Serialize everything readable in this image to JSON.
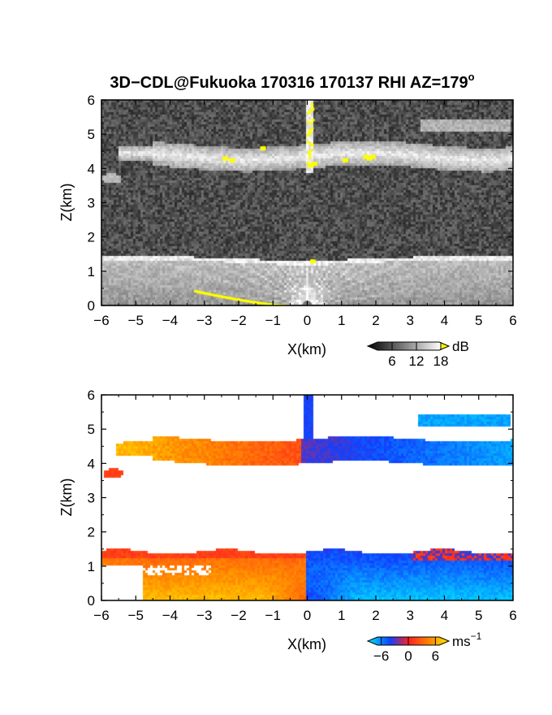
{
  "title": "3D−CDL@Fukuoka 170316 170137 RHI AZ=179",
  "title_superscript": "o",
  "chart_data": [
    {
      "type": "heatmap",
      "quantity": "backscatter intensity",
      "xlabel": "X(km)",
      "ylabel": "Z(km)",
      "xlim": [
        -6,
        6
      ],
      "ylim": [
        0,
        6
      ],
      "xticks": [
        "−6",
        "−5",
        "−4",
        "−3",
        "−2",
        "−1",
        "0",
        "1",
        "2",
        "3",
        "4",
        "5",
        "6"
      ],
      "yticks": [
        "0",
        "1",
        "2",
        "3",
        "4",
        "5",
        "6"
      ],
      "colorbar": {
        "unit": "dB",
        "ticks": [
          "6",
          "12",
          "18"
        ],
        "range": [
          0,
          20
        ],
        "colors": [
          "#000000",
          "#ffffff",
          "#ffff00"
        ]
      },
      "layers": [
        {
          "name": "boundary layer",
          "x_range": [
            -6,
            6
          ],
          "z_range": [
            0,
            1.45
          ],
          "top_dip_at_x": -0.1
        },
        {
          "name": "upper cloud band",
          "x_range": [
            -5.5,
            6
          ],
          "z_range": [
            3.9,
            4.8
          ]
        },
        {
          "name": "high cloud",
          "x_range": [
            3.3,
            5.9
          ],
          "z_range": [
            5.1,
            5.4
          ]
        },
        {
          "name": "vertical column",
          "x": 0.05,
          "z_range": [
            3.9,
            6
          ]
        }
      ]
    },
    {
      "type": "heatmap",
      "quantity": "Doppler velocity",
      "xlabel": "X(km)",
      "ylabel": "Z(km)",
      "xlim": [
        -6,
        6
      ],
      "ylim": [
        0,
        6
      ],
      "xticks": [
        "−6",
        "−5",
        "−4",
        "−3",
        "−2",
        "−1",
        "0",
        "1",
        "2",
        "3",
        "4",
        "5",
        "6"
      ],
      "yticks": [
        "0",
        "1",
        "2",
        "3",
        "4",
        "5",
        "6"
      ],
      "colorbar": {
        "unit": "ms",
        "unit_superscript": "−1",
        "ticks": [
          "−6",
          "0",
          "6"
        ],
        "range": [
          -9,
          9
        ],
        "colors": [
          "#00e5ff",
          "#1040ff",
          "#ff2020",
          "#ffee00"
        ]
      },
      "layers": [
        {
          "name": "upper band west",
          "x_range": [
            -5.6,
            0.1
          ],
          "z_range": [
            4.0,
            4.8
          ],
          "velocity": 5
        },
        {
          "name": "upper band east",
          "x_range": [
            0.1,
            6
          ],
          "z_range": [
            3.8,
            4.7
          ],
          "velocity": -5
        },
        {
          "name": "high cloud",
          "x_range": [
            3.2,
            5.9
          ],
          "z_range": [
            5.05,
            5.4
          ],
          "velocity": -7
        },
        {
          "name": "boundary layer west",
          "x_range": [
            -6,
            0
          ],
          "z_range": [
            0,
            1.45
          ],
          "velocity": 5
        },
        {
          "name": "boundary layer east",
          "x_range": [
            0,
            6
          ],
          "z_range": [
            0,
            1.4
          ],
          "velocity": -6
        }
      ]
    }
  ]
}
